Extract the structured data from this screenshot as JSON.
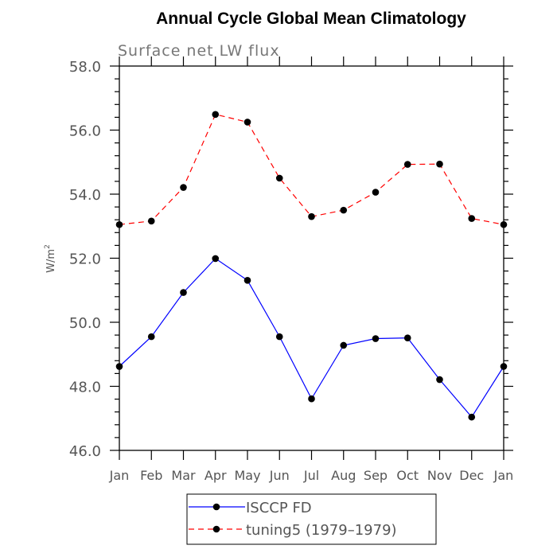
{
  "chart_data": {
    "type": "line",
    "title": "Annual Cycle Global Mean Climatology",
    "subtitle": "Surface net LW flux",
    "ylabel": "W/m",
    "ylabel_sup": "2",
    "xlabel": "",
    "categories": [
      "Jan",
      "Feb",
      "Mar",
      "Apr",
      "May",
      "Jun",
      "Jul",
      "Aug",
      "Sep",
      "Oct",
      "Nov",
      "Dec",
      "Jan"
    ],
    "ylim": [
      46.0,
      58.0
    ],
    "yticks": [
      "46.0",
      "48.0",
      "50.0",
      "52.0",
      "54.0",
      "56.0",
      "58.0"
    ],
    "ytick_values": [
      46.0,
      48.0,
      50.0,
      52.0,
      54.0,
      56.0,
      58.0
    ],
    "grid": false,
    "legend_position": "bottom",
    "series": [
      {
        "name": "ISCCP FD",
        "color": "#0000ff",
        "dash": "solid",
        "values": [
          48.62,
          49.55,
          50.93,
          51.99,
          51.31,
          49.55,
          47.61,
          49.28,
          49.49,
          49.51,
          48.21,
          47.04,
          48.62
        ]
      },
      {
        "name": "tuning5 (1979–1979)",
        "color": "#ff0000",
        "dash": "dashed",
        "values": [
          53.05,
          53.16,
          54.21,
          56.49,
          56.25,
          54.5,
          53.3,
          53.5,
          54.06,
          54.93,
          54.94,
          53.24,
          53.05
        ]
      }
    ]
  }
}
